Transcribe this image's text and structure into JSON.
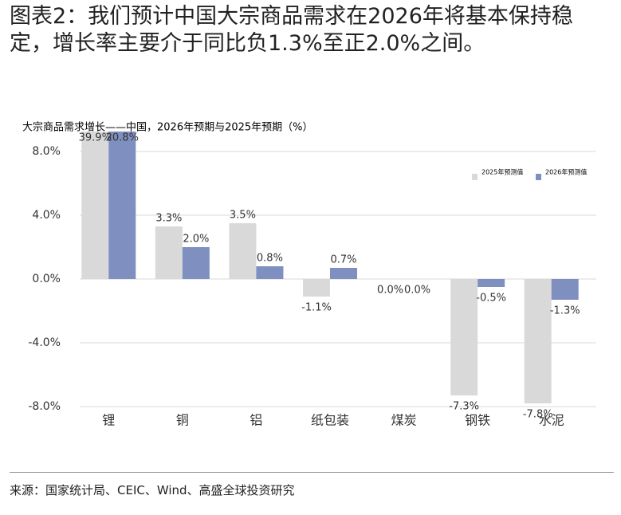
{
  "chart_data": {
    "type": "bar",
    "title": "图表2：我们预计中国大宗商品需求在2026年将基本保持稳定，增长率主要介于同比负1.3%至正2.0%之间。",
    "subtitle": "大宗商品需求增长——中国，2026年预期与2025年预期（%）",
    "source": "来源：国家统计局、CEIC、Wind、高盛全球投资研究",
    "categories": [
      "锂",
      "铜",
      "铝",
      "纸包装",
      "煤炭",
      "钢铁",
      "水泥"
    ],
    "series": [
      {
        "name": "2025年预测值",
        "color": "#d9d9d9",
        "values": [
          39.9,
          3.3,
          3.5,
          -1.1,
          0.0,
          -7.3,
          -7.8
        ],
        "value_labels": [
          "39.9%",
          "3.3%",
          "3.5%",
          "-1.1%",
          "0.0%",
          "-7.3%",
          "-7.8%"
        ]
      },
      {
        "name": "2026年预测值",
        "color": "#7f8fbf",
        "values": [
          20.8,
          2.0,
          0.8,
          0.7,
          0.0,
          -0.5,
          -1.3
        ],
        "value_labels": [
          "20.8%",
          "2.0%",
          "0.8%",
          "0.7%",
          "0.0%",
          "-0.5%",
          "-1.3%"
        ]
      }
    ],
    "ylim": [
      -8,
      9.25
    ],
    "yticks": [
      {
        "value": -8,
        "label": "-8.0%"
      },
      {
        "value": -4,
        "label": "-4.0%"
      },
      {
        "value": 0,
        "label": "0.0%"
      },
      {
        "value": 4,
        "label": "4.0%"
      },
      {
        "value": 8,
        "label": "8.0%"
      }
    ],
    "grid": true,
    "legend": "upper right"
  }
}
